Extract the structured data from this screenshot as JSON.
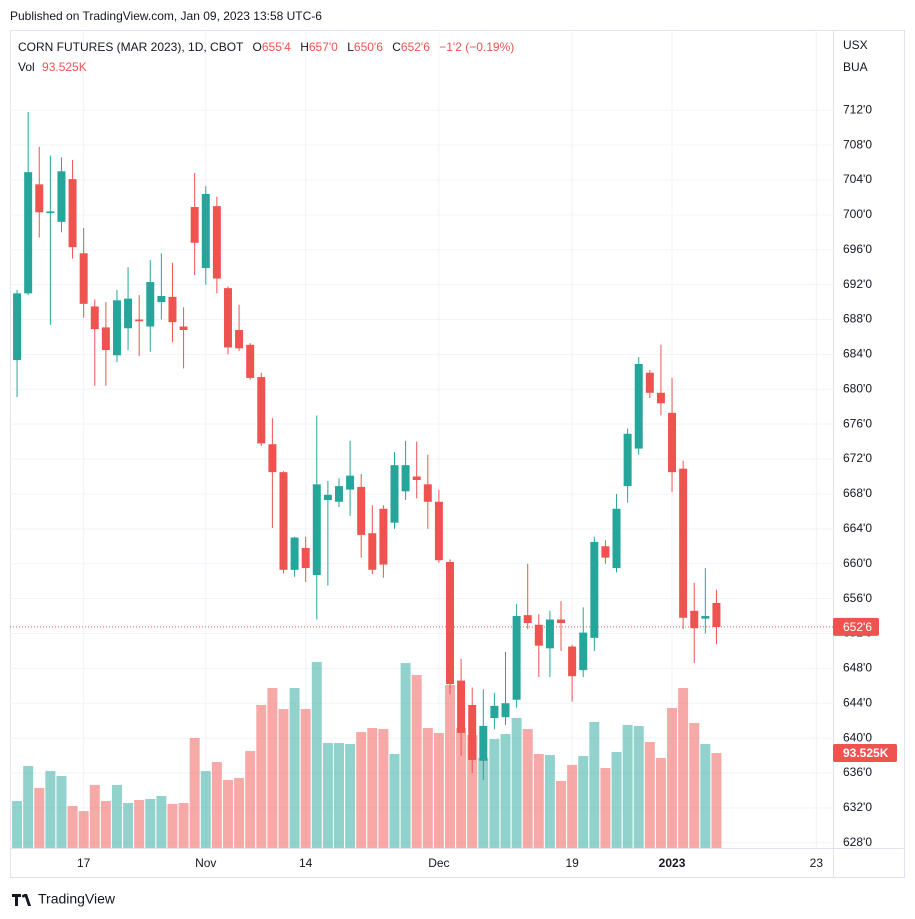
{
  "published": "Published on TradingView.com, Jan 09, 2023 13:58 UTC-6",
  "brand": "TradingView",
  "chart_data": {
    "type": "candlestick",
    "title": "CORN FUTURES (MAR 2023), 1D, CBOT",
    "ohlc": [
      {
        "label": "O",
        "value": "655'4"
      },
      {
        "label": "H",
        "value": "657'0"
      },
      {
        "label": "L",
        "value": "650'6"
      },
      {
        "label": "C",
        "value": "652'6"
      }
    ],
    "change": "−1'2 (−0.19%)",
    "currency": "USX",
    "unit": "BUA",
    "up_color": "#26a69a",
    "down_color": "#ef5350",
    "grid": true,
    "categories": [
      null,
      null,
      null,
      null,
      null,
      null,
      "17",
      null,
      null,
      null,
      null,
      null,
      null,
      null,
      null,
      null,
      null,
      "Nov",
      null,
      null,
      null,
      null,
      null,
      null,
      null,
      null,
      "14",
      null,
      null,
      null,
      null,
      null,
      null,
      null,
      null,
      null,
      null,
      null,
      "Dec",
      null,
      null,
      null,
      null,
      null,
      null,
      null,
      null,
      null,
      null,
      null,
      "19",
      null,
      null,
      null,
      null,
      null,
      null,
      null,
      null,
      "2023",
      null,
      null,
      null,
      null,
      null,
      null,
      null,
      null,
      null,
      null,
      null,
      null,
      "23",
      null
    ],
    "open": [
      683.35,
      691.0,
      703.5,
      700.2,
      699.2,
      704.1,
      695.6,
      689.5,
      687.1,
      683.9,
      687.0,
      688.0,
      687.2,
      690.0,
      690.6,
      687.2,
      700.9,
      693.9,
      701.0,
      691.6,
      686.8,
      685.1,
      681.4,
      673.7,
      670.5,
      659.3,
      661.8,
      658.7,
      667.3,
      667.1,
      668.5,
      668.8,
      663.5,
      666.3,
      664.7,
      668.3,
      670.0,
      669.1,
      667.1,
      660.2,
      646.6,
      643.8,
      637.4,
      642.3,
      642.4,
      644.4,
      654.1,
      653.0,
      650.3,
      653.6,
      650.5,
      647.8,
      651.5,
      662.0,
      659.5,
      668.9,
      673.2,
      681.9,
      679.6,
      677.3,
      670.9,
      654.6,
      653.7,
      655.5,
      null,
      null,
      null,
      null,
      null,
      null,
      null,
      null,
      null,
      null
    ],
    "high": [
      691.4,
      711.8,
      707.8,
      706.8,
      706.6,
      706.3,
      698.5,
      690.3,
      690.0,
      691.4,
      694.0,
      690.8,
      694.8,
      695.6,
      694.5,
      689.4,
      704.8,
      703.3,
      702.1,
      691.8,
      689.7,
      685.3,
      681.9,
      676.7,
      670.6,
      663.1,
      663.1,
      677.0,
      669.5,
      669.8,
      674.1,
      670.3,
      666.7,
      666.7,
      672.8,
      674.1,
      674.0,
      672.5,
      668.5,
      660.5,
      649.1,
      645.8,
      645.6,
      645.2,
      649.9,
      655.4,
      660.0,
      654.2,
      654.6,
      655.7,
      650.7,
      655.0,
      663.1,
      662.7,
      668.0,
      675.5,
      683.7,
      682.2,
      685.1,
      681.3,
      671.8,
      657.8,
      659.5,
      657.0,
      null,
      null,
      null,
      null,
      null,
      null,
      null,
      null,
      null,
      null
    ],
    "low": [
      679.1,
      690.8,
      697.4,
      687.4,
      698.0,
      695.0,
      688.2,
      680.4,
      680.4,
      683.1,
      684.5,
      683.8,
      684.3,
      688.0,
      685.4,
      682.4,
      693.1,
      692.0,
      691.0,
      684.0,
      684.4,
      681.1,
      673.5,
      664.1,
      658.9,
      658.5,
      657.9,
      653.6,
      657.5,
      666.5,
      665.5,
      660.7,
      658.8,
      658.4,
      664.0,
      667.3,
      667.5,
      664.0,
      660.1,
      645.0,
      638.0,
      636.0,
      635.2,
      641.0,
      641.5,
      643.5,
      652.5,
      647.0,
      647.0,
      650.0,
      644.2,
      647.0,
      650.0,
      660.0,
      659.0,
      667.0,
      672.5,
      679.0,
      677.0,
      668.2,
      652.5,
      648.6,
      652.0,
      650.75,
      null,
      null,
      null,
      null,
      null,
      null,
      null,
      null,
      null,
      null
    ],
    "close": [
      691.0,
      704.9,
      700.3,
      700.4,
      705.0,
      696.3,
      689.8,
      686.9,
      684.5,
      690.2,
      690.4,
      687.8,
      692.3,
      690.7,
      687.7,
      686.8,
      696.8,
      702.4,
      692.7,
      684.8,
      684.7,
      681.3,
      673.8,
      670.5,
      659.3,
      663.0,
      659.5,
      669.1,
      667.9,
      668.9,
      670.1,
      663.3,
      659.3,
      659.9,
      671.3,
      671.3,
      669.6,
      667.1,
      660.4,
      646.2,
      640.6,
      637.5,
      641.4,
      643.7,
      644.0,
      654.0,
      653.2,
      650.6,
      653.6,
      653.2,
      647.1,
      652.1,
      662.5,
      660.7,
      666.3,
      674.9,
      682.9,
      679.6,
      678.4,
      670.5,
      653.8,
      652.6,
      654.0,
      652.75,
      null,
      null,
      null,
      null,
      null,
      null,
      null,
      null,
      null,
      null
    ],
    "volume": {
      "name": "Vol",
      "last_label": "93.525K",
      "values": [
        46300,
        80800,
        59100,
        75800,
        70900,
        41400,
        36400,
        62100,
        46300,
        62100,
        44300,
        47300,
        48300,
        51200,
        43300,
        44300,
        108400,
        75800,
        84700,
        67000,
        69000,
        95500,
        140900,
        157600,
        136900,
        157600,
        136900,
        183200,
        103400,
        103400,
        102400,
        114300,
        118200,
        117200,
        92600,
        182200,
        170400,
        118200,
        113300,
        160600,
        118200,
        111300,
        88700,
        107400,
        112300,
        128100,
        117200,
        92600,
        91600,
        66000,
        81800,
        90600,
        124100,
        78800,
        94600,
        121200,
        120200,
        104400,
        88700,
        137900,
        157600,
        123100,
        102400,
        93525,
        null,
        null,
        null,
        null,
        null,
        null,
        null,
        null,
        null,
        null
      ]
    },
    "last_price": {
      "value": 652.75,
      "label": "652'6"
    },
    "ylim": [
      627.4,
      721.2
    ],
    "yticks": [
      {
        "value": 628,
        "label": "628'0"
      },
      {
        "value": 632,
        "label": "632'0"
      },
      {
        "value": 636,
        "label": "636'0"
      },
      {
        "value": 640,
        "label": "640'0"
      },
      {
        "value": 644,
        "label": "644'0"
      },
      {
        "value": 648,
        "label": "648'0"
      },
      {
        "value": 652,
        "label": "652'0"
      },
      {
        "value": 656,
        "label": "656'0"
      },
      {
        "value": 660,
        "label": "660'0"
      },
      {
        "value": 664,
        "label": "664'0"
      },
      {
        "value": 668,
        "label": "668'0"
      },
      {
        "value": 672,
        "label": "672'0"
      },
      {
        "value": 676,
        "label": "676'0"
      },
      {
        "value": 680,
        "label": "680'0"
      },
      {
        "value": 684,
        "label": "684'0"
      },
      {
        "value": 688,
        "label": "688'0"
      },
      {
        "value": 692,
        "label": "692'0"
      },
      {
        "value": 696,
        "label": "696'0"
      },
      {
        "value": 700,
        "label": "700'0"
      },
      {
        "value": 704,
        "label": "704'0"
      },
      {
        "value": 708,
        "label": "708'0"
      },
      {
        "value": 712,
        "label": "712'0"
      }
    ]
  }
}
